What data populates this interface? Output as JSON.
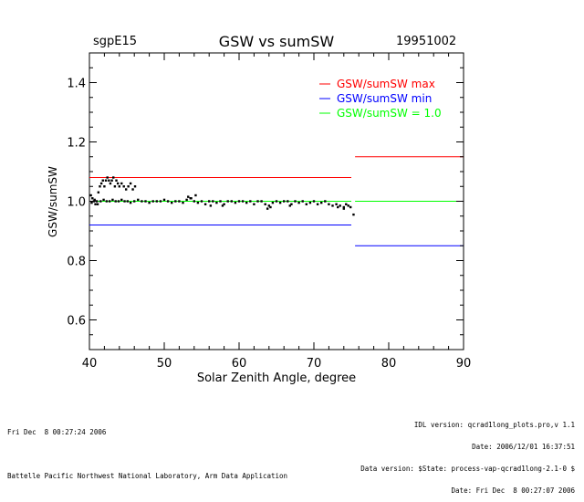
{
  "header": {
    "site": "sgpE15",
    "title": "GSW vs sumSW",
    "date": "19951002"
  },
  "chart_data": {
    "type": "scatter",
    "title": "GSW vs sumSW",
    "xlabel": "Solar Zenith Angle, degree",
    "ylabel": "GSW/sumSW",
    "xlim": [
      40,
      90
    ],
    "ylim": [
      0.5,
      1.5
    ],
    "x_ticks": [
      "40",
      "50",
      "60",
      "70",
      "80",
      "90"
    ],
    "x_tick_values": [
      40,
      50,
      60,
      70,
      80,
      90
    ],
    "y_ticks": [
      "0.6",
      "0.8",
      "1.0",
      "1.2",
      "1.4"
    ],
    "y_tick_values": [
      0.6,
      0.8,
      1.0,
      1.2,
      1.4
    ],
    "legend": [
      {
        "label": "GSW/sumSW max",
        "color": "#ff0000"
      },
      {
        "label": "GSW/sumSW min",
        "color": "#0000ff"
      },
      {
        "label": "GSW/sumSW = 1.0",
        "color": "#00ff00"
      }
    ],
    "legend_position": "top-right",
    "reference_lines": [
      {
        "name": "GSW/sumSW max",
        "color": "#ff0000",
        "segments": [
          {
            "x": [
              40,
              75
            ],
            "y": 1.08
          },
          {
            "x": [
              75.5,
              90
            ],
            "y": 1.15
          }
        ]
      },
      {
        "name": "GSW/sumSW min",
        "color": "#0000ff",
        "segments": [
          {
            "x": [
              40,
              75
            ],
            "y": 0.92
          },
          {
            "x": [
              75.5,
              90
            ],
            "y": 0.85
          }
        ]
      },
      {
        "name": "GSW/sumSW = 1.0",
        "color": "#00ff00",
        "segments": [
          {
            "x": [
              40,
              75
            ],
            "y": 1.0
          },
          {
            "x": [
              75.5,
              90
            ],
            "y": 1.0
          }
        ]
      }
    ],
    "points": {
      "x": [
        40.2,
        40.4,
        40.6,
        40.8,
        41.0,
        41.2,
        41.4,
        41.6,
        41.8,
        42.0,
        42.2,
        42.4,
        42.6,
        42.8,
        43.0,
        43.2,
        43.4,
        43.6,
        43.8,
        44.0,
        44.3,
        44.6,
        44.9,
        45.2,
        45.5,
        45.8,
        46.1,
        40.3,
        40.7,
        41.1,
        41.5,
        41.9,
        42.3,
        42.7,
        43.1,
        43.5,
        43.9,
        44.3,
        44.7,
        45.1,
        45.5,
        46.0,
        46.5,
        47.0,
        47.5,
        48.0,
        48.5,
        49.0,
        49.5,
        50.0,
        50.5,
        51.0,
        51.5,
        52.0,
        52.5,
        53.0,
        53.5,
        54.0,
        54.5,
        55.0,
        55.5,
        56.0,
        56.5,
        57.0,
        57.5,
        58.0,
        58.5,
        59.0,
        59.5,
        60.0,
        60.5,
        61.0,
        61.5,
        62.0,
        62.5,
        63.0,
        63.5,
        64.0,
        64.5,
        65.0,
        65.5,
        66.0,
        66.5,
        67.0,
        67.5,
        68.0,
        68.5,
        69.0,
        69.5,
        70.0,
        70.5,
        71.0,
        71.5,
        72.0,
        72.5,
        73.0,
        73.5,
        74.0,
        74.3,
        74.6,
        74.9,
        75.3,
        53.2,
        53.6,
        54.2,
        56.2,
        57.8,
        63.8,
        64.2,
        66.8,
        73.2,
        74.0
      ],
      "y": [
        1.02,
        1.01,
        1.0,
        0.99,
        1.0,
        1.03,
        1.05,
        1.06,
        1.07,
        1.05,
        1.07,
        1.08,
        1.07,
        1.06,
        1.07,
        1.08,
        1.05,
        1.07,
        1.06,
        1.05,
        1.06,
        1.05,
        1.04,
        1.05,
        1.06,
        1.04,
        1.05,
        0.995,
        1.005,
        0.99,
        1.0,
        1.005,
        1.0,
        1.0,
        1.005,
        1.0,
        1.0,
        1.005,
        1.0,
        1.0,
        0.995,
        1.0,
        1.005,
        1.0,
        1.0,
        0.995,
        1.0,
        1.0,
        1.0,
        1.005,
        1.0,
        0.995,
        1.0,
        1.0,
        0.995,
        1.005,
        1.01,
        1.0,
        0.995,
        1.0,
        0.99,
        1.0,
        1.0,
        0.995,
        1.0,
        0.99,
        1.0,
        1.0,
        0.995,
        1.0,
        1.0,
        0.995,
        1.0,
        0.99,
        1.0,
        1.0,
        0.99,
        0.985,
        0.995,
        1.0,
        0.995,
        1.0,
        1.0,
        0.99,
        1.0,
        0.995,
        1.0,
        0.99,
        0.995,
        1.0,
        0.99,
        0.995,
        1.0,
        0.99,
        0.985,
        0.99,
        0.985,
        0.98,
        0.99,
        0.985,
        0.98,
        0.955,
        1.015,
        1.01,
        1.02,
        0.985,
        0.985,
        0.975,
        0.98,
        0.985,
        0.98,
        0.975
      ]
    },
    "point_color": "#000000",
    "grid": false
  },
  "footer": {
    "left_line1": "Fri Dec  8 00:27:24 2006",
    "left_line2": "Battelle Pacific Northwest National Laboratory, Arm Data Application",
    "right_line1": "IDL version: qcrad1long_plots.pro,v 1.1",
    "right_line2": "Date: 2006/12/01 16:37:51",
    "right_line3": "Data version: $State: process-vap-qcrad1long-2.1-0 $",
    "right_line4": "Date: Fri Dec  8 00:27:07 2006"
  }
}
